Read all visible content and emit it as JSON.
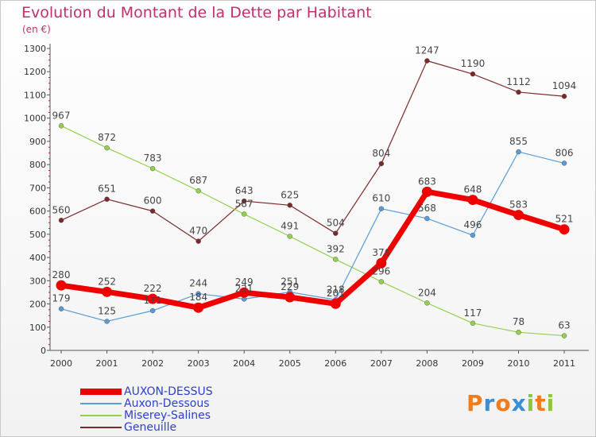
{
  "header": {
    "title": "Evolution du Montant de la Dette par Habitant",
    "unit": "(en €)"
  },
  "logo": {
    "letters": [
      "P",
      "r",
      "o",
      "x",
      "i",
      "t",
      "i"
    ],
    "colors": [
      "#f07c1e",
      "#3a8fd4",
      "#f07c1e",
      "#3a8fd4",
      "#8cc63f",
      "#f07c1e",
      "#8cc63f"
    ]
  },
  "chart_data": {
    "type": "line",
    "x": [
      "2000",
      "2001",
      "2002",
      "2003",
      "2004",
      "2005",
      "2006",
      "2007",
      "2008",
      "2009",
      "2010",
      "2011"
    ],
    "ylim": [
      0,
      1300
    ],
    "yticks": [
      0,
      100,
      200,
      300,
      400,
      500,
      600,
      700,
      800,
      900,
      1000,
      1100,
      1200,
      1300
    ],
    "grid": false,
    "legend": "bottom-left",
    "series": [
      {
        "name": "AUXON-DESSUS",
        "color": "#ee0000",
        "values": [
          280,
          252,
          222,
          184,
          249,
          229,
          201,
          376,
          683,
          648,
          583,
          521
        ]
      },
      {
        "name": "Auxon-Dessous",
        "color": "#5b9bd5",
        "values": [
          179,
          125,
          171,
          244,
          221,
          251,
          218,
          610,
          568,
          496,
          855,
          806
        ]
      },
      {
        "name": "Miserey-Salines",
        "color": "#92d050",
        "values": [
          967,
          872,
          783,
          687,
          587,
          491,
          392,
          296,
          204,
          117,
          78,
          63
        ]
      },
      {
        "name": "Geneuille",
        "color": "#7b2a2a",
        "values": [
          560,
          651,
          600,
          470,
          643,
          625,
          504,
          804,
          1247,
          1190,
          1112,
          1094
        ]
      }
    ]
  }
}
